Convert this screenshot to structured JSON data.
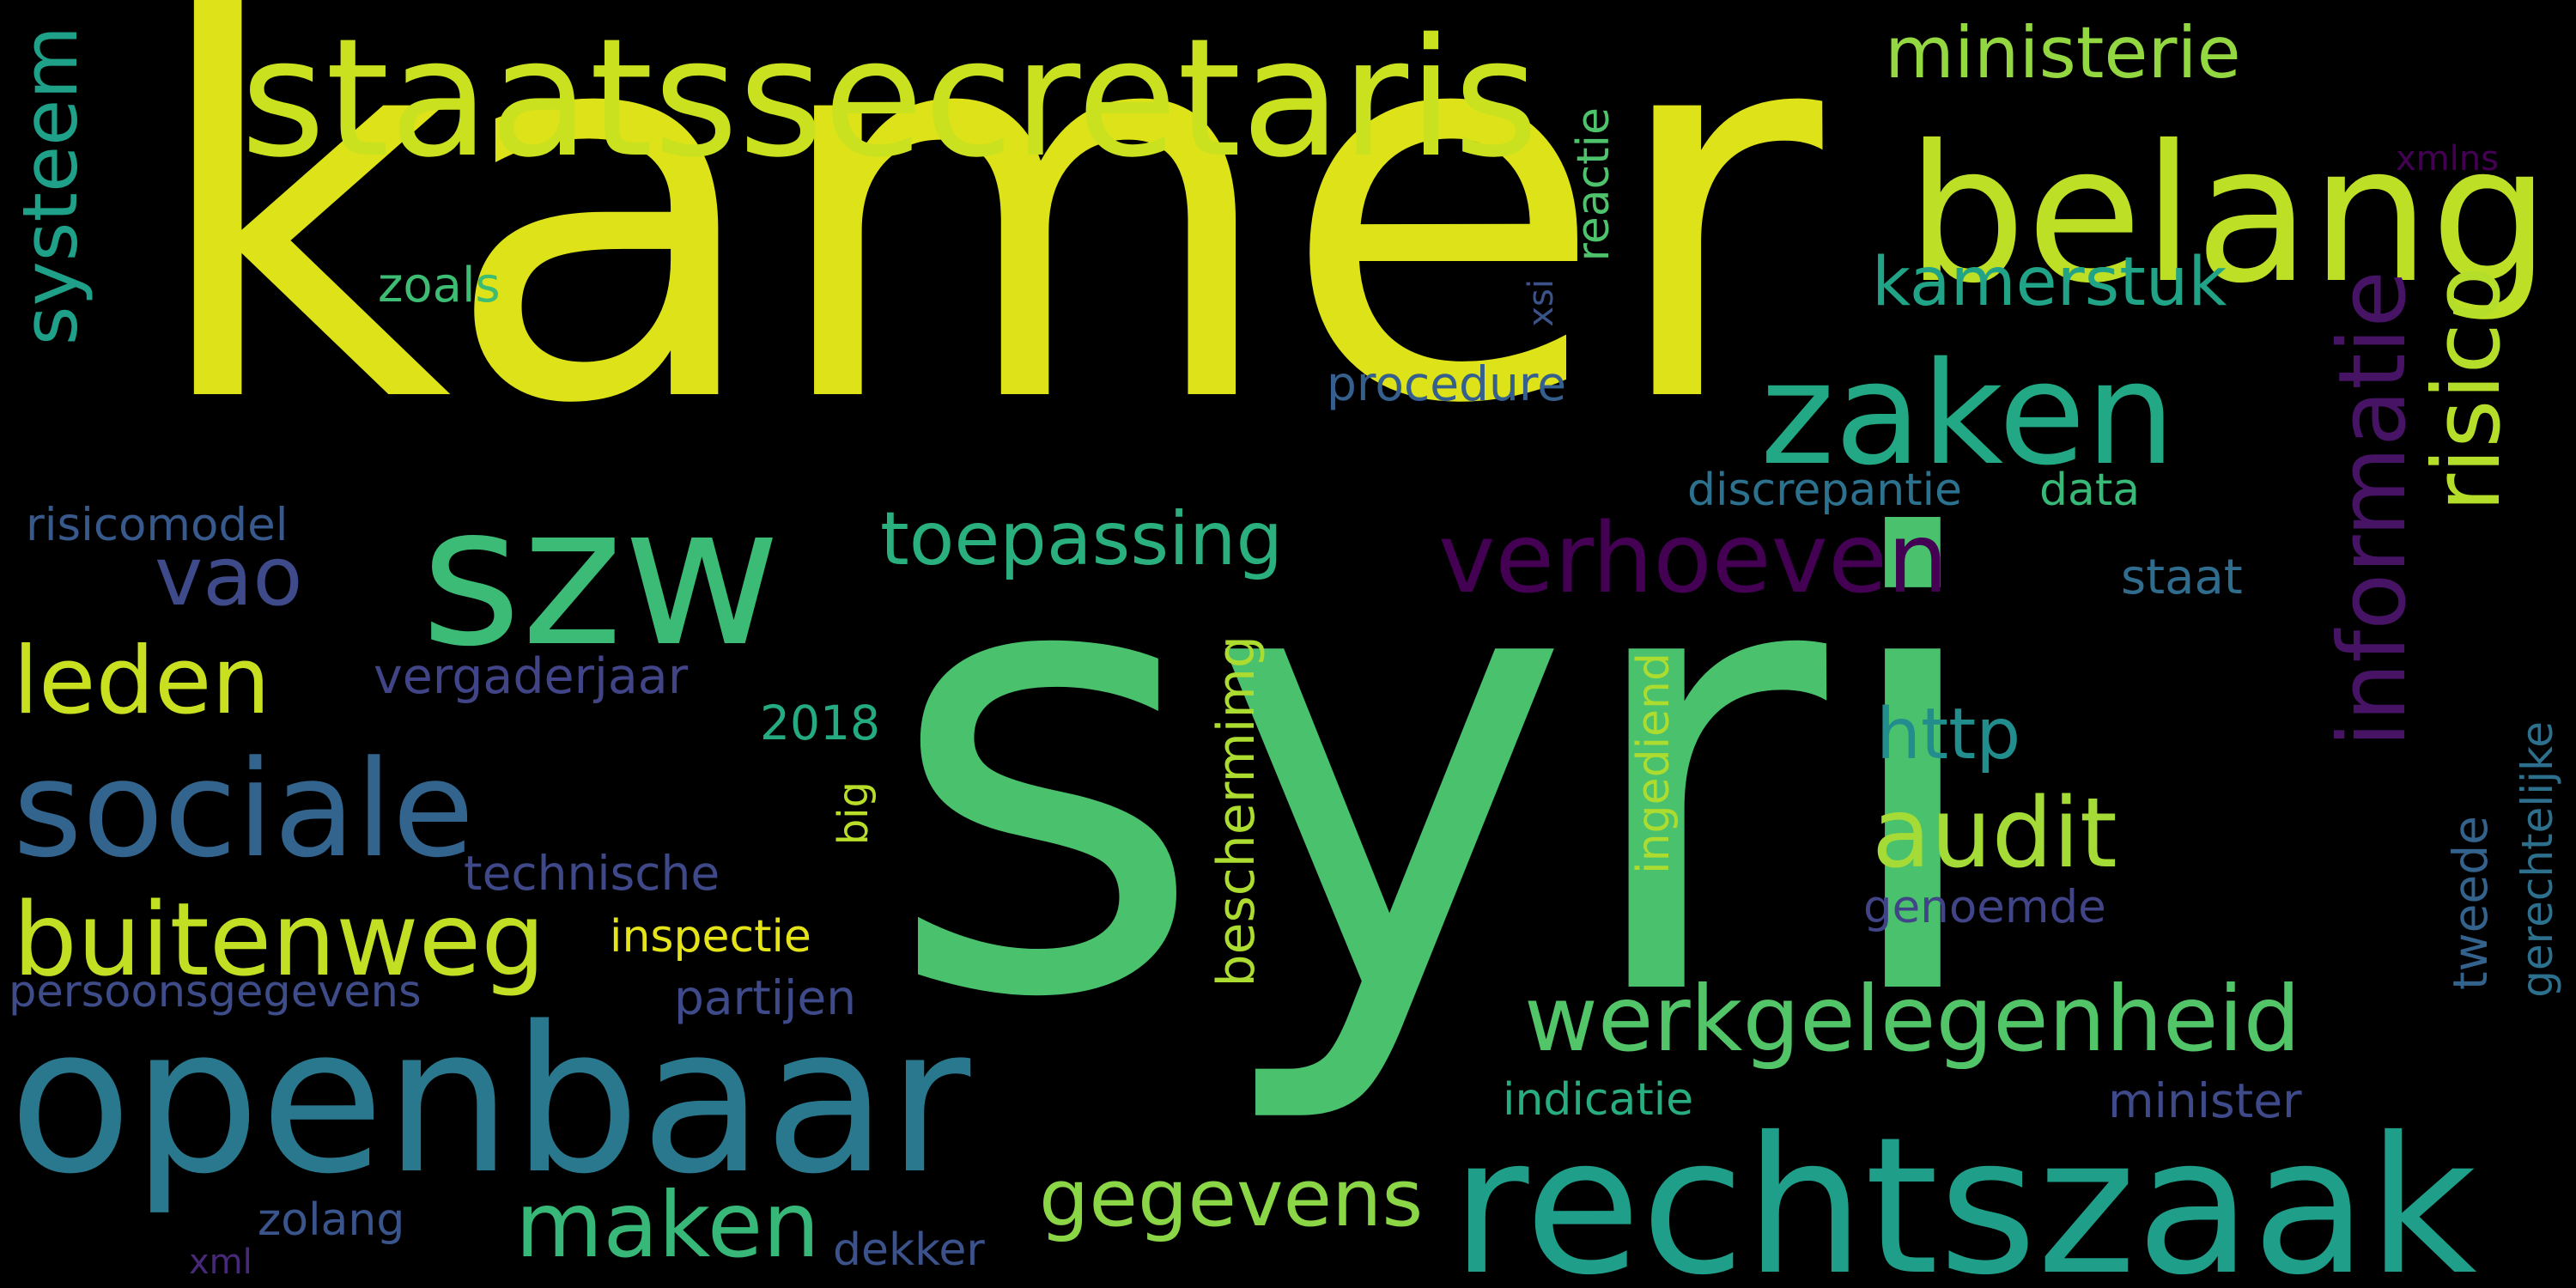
{
  "words": [
    {
      "text": "kamer",
      "color": "#dde318"
    },
    {
      "text": "syri",
      "color": "#4ac16d"
    },
    {
      "text": "staatssecretaris",
      "color": "#cae11f"
    },
    {
      "text": "belang",
      "color": "#bddf26"
    },
    {
      "text": "szw",
      "color": "#3bbb75"
    },
    {
      "text": "zaken",
      "color": "#22a884"
    },
    {
      "text": "openbaar",
      "color": "#2a788e"
    },
    {
      "text": "rechtszaak",
      "color": "#1f9e89"
    },
    {
      "text": "sociale",
      "color": "#32648e"
    },
    {
      "text": "buitenweg",
      "color": "#c2df23"
    },
    {
      "text": "werkgelegenheid",
      "color": "#52c569"
    },
    {
      "text": "toepassing",
      "color": "#2ab07f"
    },
    {
      "text": "verhoeven",
      "color": "#440154"
    },
    {
      "text": "ministerie",
      "color": "#93d741"
    },
    {
      "text": "kamerstuk",
      "color": "#20a386"
    },
    {
      "text": "leden",
      "color": "#c8e020"
    },
    {
      "text": "vao",
      "color": "#3e4a89"
    },
    {
      "text": "maken",
      "color": "#37b878"
    },
    {
      "text": "gegevens",
      "color": "#8bd646"
    },
    {
      "text": "audit",
      "color": "#a5db36"
    },
    {
      "text": "http",
      "color": "#228d8d"
    },
    {
      "text": "risico",
      "color": "#b5de2b"
    },
    {
      "text": "informatie",
      "color": "#471365"
    },
    {
      "text": "systeem",
      "color": "#1fa088"
    },
    {
      "text": "procedure",
      "color": "#355f8d"
    },
    {
      "text": "risicomodel",
      "color": "#38598c"
    },
    {
      "text": "vergaderjaar",
      "color": "#414487"
    },
    {
      "text": "zoals",
      "color": "#3dbc74"
    },
    {
      "text": "reactie",
      "color": "#4ec36b"
    },
    {
      "text": "xsi",
      "color": "#3b528b"
    },
    {
      "text": "xmlns",
      "color": "#440154"
    },
    {
      "text": "discrepantie",
      "color": "#2c728e"
    },
    {
      "text": "data",
      "color": "#38b977"
    },
    {
      "text": "staat",
      "color": "#2f6c8e"
    },
    {
      "text": "2018",
      "color": "#25ab82"
    },
    {
      "text": "big",
      "color": "#b8de29"
    },
    {
      "text": "technische",
      "color": "#3f4889"
    },
    {
      "text": "inspectie",
      "color": "#e5e419"
    },
    {
      "text": "beschermimg",
      "color": "#addc30"
    },
    {
      "text": "ingediend",
      "color": "#addc30"
    },
    {
      "text": "genoemde",
      "color": "#414487"
    },
    {
      "text": "tweede",
      "color": "#33638d"
    },
    {
      "text": "gerechtelijke",
      "color": "#2d708e"
    },
    {
      "text": "persoonsgegevens",
      "color": "#3e4c8a"
    },
    {
      "text": "partijen",
      "color": "#3e4a89"
    },
    {
      "text": "indicatie",
      "color": "#27ad81"
    },
    {
      "text": "minister",
      "color": "#3e4a89"
    },
    {
      "text": "zolang",
      "color": "#3a548c"
    },
    {
      "text": "xml",
      "color": "#482878"
    },
    {
      "text": "dekker",
      "color": "#3b528b"
    }
  ]
}
